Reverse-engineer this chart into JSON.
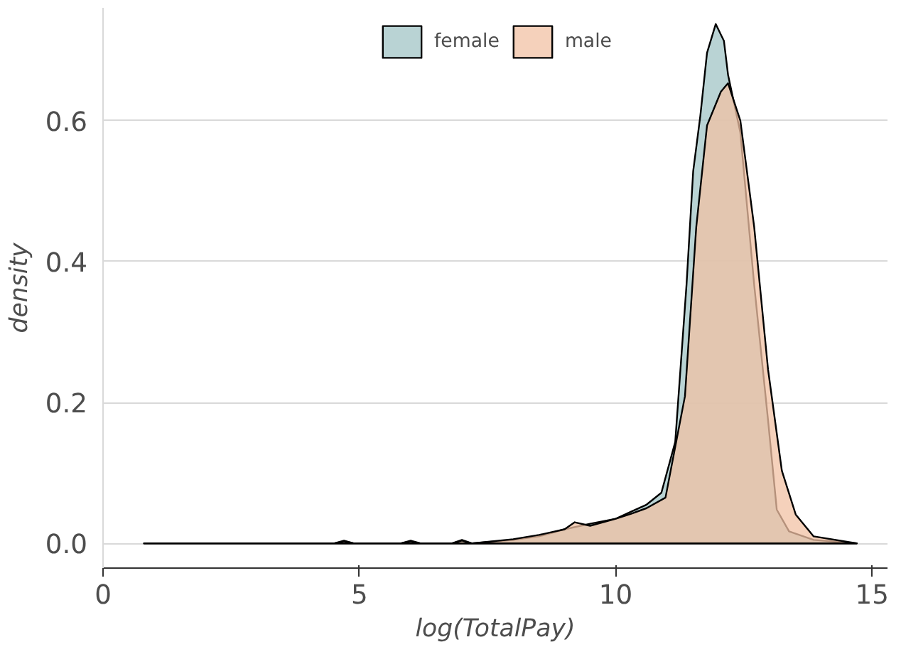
{
  "chart_data": {
    "type": "area",
    "xlabel": "log(TotalPay)",
    "ylabel": "density",
    "xlim": [
      0,
      15.3
    ],
    "xticks": [
      0,
      5,
      10,
      15
    ],
    "ylim": [
      -0.035,
      0.76
    ],
    "yticks": [
      {
        "value": 0,
        "label": "0.0"
      },
      0.2,
      0.4,
      0.6
    ],
    "grid": "y",
    "legend": "top",
    "series": [
      {
        "name": "female",
        "color": "#a2c4c5",
        "x": [
          0.8,
          4.5,
          4.7,
          4.9,
          5.8,
          6.0,
          6.2,
          6.8,
          7.0,
          7.2,
          8.0,
          8.5,
          9.0,
          9.5,
          10.0,
          10.3,
          10.6,
          10.89,
          11.16,
          11.38,
          11.51,
          11.65,
          11.78,
          11.95,
          12.11,
          12.19,
          12.43,
          12.7,
          12.97,
          13.14,
          13.38,
          13.86,
          14.7
        ],
        "values": [
          0,
          0,
          0.004,
          0,
          0,
          0.004,
          0,
          0,
          0.005,
          0,
          0.005,
          0.01,
          0.02,
          0.028,
          0.035,
          0.045,
          0.055,
          0.072,
          0.144,
          0.367,
          0.528,
          0.607,
          0.696,
          0.737,
          0.713,
          0.665,
          0.583,
          0.367,
          0.175,
          0.048,
          0.017,
          0.005,
          0
        ]
      },
      {
        "name": "male",
        "color": "#f2c2a4",
        "x": [
          0.8,
          4.5,
          4.7,
          4.9,
          5.8,
          6.0,
          6.2,
          6.8,
          7.0,
          7.2,
          8.0,
          8.5,
          9.0,
          9.2,
          9.5,
          10.0,
          10.3,
          10.6,
          10.97,
          11.35,
          11.57,
          11.78,
          12.05,
          12.19,
          12.43,
          12.7,
          12.97,
          13.24,
          13.51,
          13.86,
          14.7
        ],
        "values": [
          0,
          0,
          0.003,
          0,
          0,
          0.003,
          0,
          0,
          0.004,
          0,
          0.006,
          0.012,
          0.02,
          0.03,
          0.025,
          0.035,
          0.042,
          0.05,
          0.065,
          0.209,
          0.449,
          0.593,
          0.641,
          0.653,
          0.6,
          0.449,
          0.247,
          0.103,
          0.041,
          0.01,
          0
        ]
      }
    ]
  }
}
